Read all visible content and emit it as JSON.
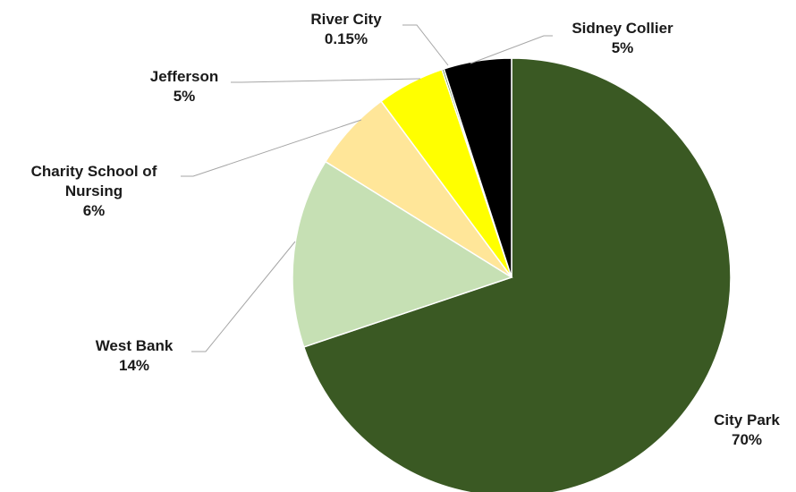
{
  "chart_data": {
    "type": "pie",
    "title": "",
    "start_angle_deg": 0,
    "direction": "clockwise",
    "legend": "none",
    "slices": [
      {
        "name": "City Park",
        "value": 69.85,
        "label_pct": "70%",
        "color": "#3a5923"
      },
      {
        "name": "West Bank",
        "value": 14,
        "label_pct": "14%",
        "color": "#c6e0b4"
      },
      {
        "name": "Charity School of Nursing",
        "value": 6,
        "label_pct": "6%",
        "color": "#ffe699"
      },
      {
        "name": "Jefferson",
        "value": 5,
        "label_pct": "5%",
        "color": "#ffff00"
      },
      {
        "name": "River City",
        "value": 0.15,
        "label_pct": "0.15%",
        "color": "#4d7a2e"
      },
      {
        "name": "Sidney Collier",
        "value": 5,
        "label_pct": "5%",
        "color": "#000000"
      }
    ]
  }
}
